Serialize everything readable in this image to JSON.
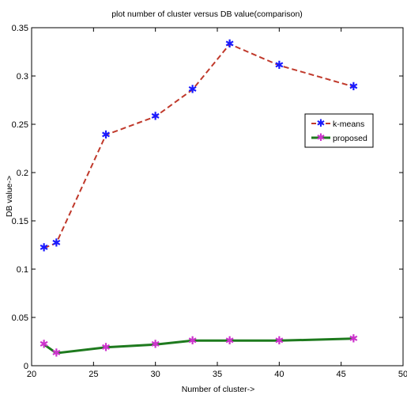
{
  "chart_data": {
    "type": "line",
    "title": "plot number of cluster versus DB value(comparison)",
    "xlabel": "Number of cluster->",
    "ylabel": "DB value->",
    "xlim": [
      20,
      50
    ],
    "ylim": [
      0,
      0.35
    ],
    "xticks": [
      "20",
      "25",
      "30",
      "35",
      "40",
      "45",
      "50"
    ],
    "yticks": [
      "0",
      "0.05",
      "0.1",
      "0.15",
      "0.2",
      "0.25",
      "0.3",
      "0.35"
    ],
    "grid": false,
    "legend_position": "right",
    "series": [
      {
        "name": "k-means",
        "color": "#c0392b",
        "marker_color": "#1a1aff",
        "line_style": "dashed",
        "marker": "star",
        "x": [
          21,
          22,
          26,
          30,
          33,
          36,
          40,
          46
        ],
        "y": [
          0.122,
          0.127,
          0.239,
          0.258,
          0.286,
          0.333,
          0.311,
          0.289
        ]
      },
      {
        "name": "proposed",
        "color": "#1e7a1e",
        "marker_color": "#cc33cc",
        "line_style": "solid",
        "marker": "star",
        "x": [
          21,
          22,
          26,
          30,
          33,
          36,
          40,
          46
        ],
        "y": [
          0.022,
          0.013,
          0.019,
          0.022,
          0.026,
          0.026,
          0.026,
          0.028
        ]
      }
    ]
  }
}
